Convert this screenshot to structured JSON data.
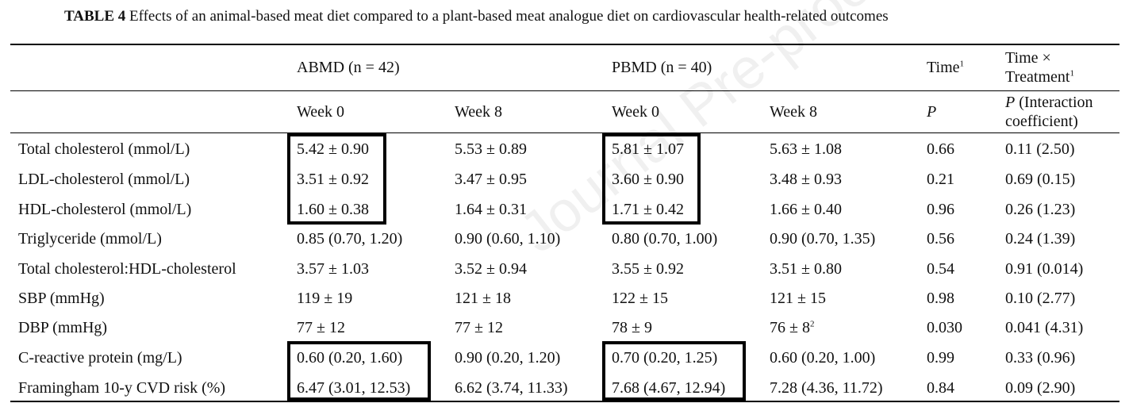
{
  "caption": {
    "label": "TABLE 4",
    "text": "Effects of an animal-based meat diet compared to a plant-based meat analogue diet on cardiovascular health-related outcomes"
  },
  "header": {
    "abmd": "ABMD (n = 42)",
    "pbmd": "PBMD (n = 40)",
    "time": "Time",
    "time_sup": "1",
    "time_x_line1": "Time ×",
    "time_x_line2": "Treatment",
    "time_x_sup": "1",
    "week0_a": "Week 0",
    "week8_a": "Week 8",
    "week0_b": "Week 0",
    "week8_b": "Week 8",
    "p": "P",
    "p_interaction_p": "P",
    "p_interaction_line1": " (Interaction",
    "p_interaction_line2": "coefficient)"
  },
  "rows": [
    {
      "label": "Total cholesterol (mmol/L)",
      "a0": "5.42 ± 0.90",
      "a8": "5.53 ± 0.89",
      "b0": "5.81 ± 1.07",
      "b8": "5.63 ± 1.08",
      "p": "0.66",
      "pi": "0.11 (2.50)"
    },
    {
      "label": "LDL-cholesterol (mmol/L)",
      "a0": "3.51 ± 0.92",
      "a8": "3.47 ± 0.95",
      "b0": "3.60 ± 0.90",
      "b8": "3.48 ± 0.93",
      "p": "0.21",
      "pi": "0.69 (0.15)"
    },
    {
      "label": "HDL-cholesterol (mmol/L)",
      "a0": "1.60 ± 0.38",
      "a8": "1.64 ± 0.31",
      "b0": "1.71 ± 0.42",
      "b8": "1.66 ± 0.40",
      "p": "0.96",
      "pi": "0.26 (1.23)"
    },
    {
      "label": "Triglyceride (mmol/L)",
      "a0": "0.85 (0.70, 1.20)",
      "a8": "0.90 (0.60, 1.10)",
      "b0": "0.80 (0.70, 1.00)",
      "b8": "0.90 (0.70, 1.35)",
      "p": "0.56",
      "pi": "0.24 (1.39)"
    },
    {
      "label": "Total cholesterol:HDL-cholesterol",
      "a0": "3.57 ± 1.03",
      "a8": "3.52 ± 0.94",
      "b0": "3.55 ± 0.92",
      "b8": "3.51 ± 0.80",
      "p": "0.54",
      "pi": "0.91 (0.014)"
    },
    {
      "label": "SBP (mmHg)",
      "a0": "119 ± 19",
      "a8": "121 ± 18",
      "b0": "122 ± 15",
      "b8": "121 ± 15",
      "p": "0.98",
      "pi": "0.10 (2.77)"
    },
    {
      "label": "DBP (mmHg)",
      "a0": "77 ± 12",
      "a8": "77 ± 12",
      "b0": "78 ± 9",
      "b8": "76 ± 8",
      "b8_sup": "2",
      "p": "0.030",
      "pi": "0.041 (4.31)"
    },
    {
      "label": "C-reactive protein (mg/L)",
      "a0": "0.60 (0.20, 1.60)",
      "a8": "0.90 (0.20, 1.20)",
      "b0": "0.70 (0.20, 1.25)",
      "b8": "0.60 (0.20, 1.00)",
      "p": "0.99",
      "pi": "0.33 (0.96)"
    },
    {
      "label": "Framingham 10-y CVD risk (%)",
      "a0": "6.47 (3.01, 12.53)",
      "a8": "6.62 (3.74, 11.33)",
      "b0": "7.68 (4.67, 12.94)",
      "b8": "7.28 (4.36, 11.72)",
      "p": "0.84",
      "pi": "0.09 (2.90)"
    }
  ],
  "watermark": "Journal Pre-proof"
}
